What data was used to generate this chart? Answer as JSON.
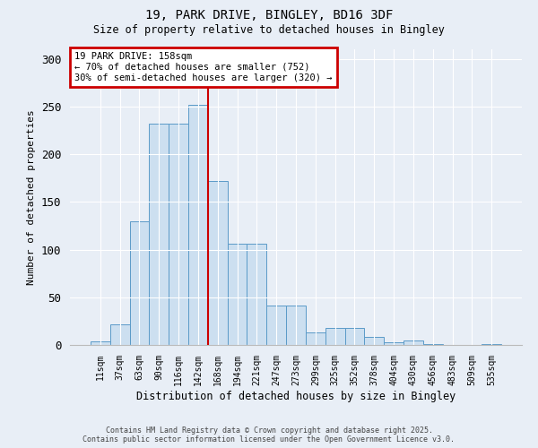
{
  "title_line1": "19, PARK DRIVE, BINGLEY, BD16 3DF",
  "title_line2": "Size of property relative to detached houses in Bingley",
  "xlabel": "Distribution of detached houses by size in Bingley",
  "ylabel": "Number of detached properties",
  "annotation_line1": "19 PARK DRIVE: 158sqm",
  "annotation_line2": "← 70% of detached houses are smaller (752)",
  "annotation_line3": "30% of semi-detached houses are larger (320) →",
  "bar_labels": [
    "11sqm",
    "37sqm",
    "63sqm",
    "90sqm",
    "116sqm",
    "142sqm",
    "168sqm",
    "194sqm",
    "221sqm",
    "247sqm",
    "273sqm",
    "299sqm",
    "325sqm",
    "352sqm",
    "378sqm",
    "404sqm",
    "430sqm",
    "456sqm",
    "483sqm",
    "509sqm",
    "535sqm"
  ],
  "bar_values": [
    4,
    22,
    130,
    232,
    232,
    252,
    172,
    106,
    106,
    41,
    41,
    13,
    18,
    18,
    8,
    3,
    5,
    1,
    0,
    0,
    1
  ],
  "bar_color": "#ccdff0",
  "bar_edge_color": "#5b9ac8",
  "vline_color": "#cc0000",
  "annotation_box_color": "#cc0000",
  "annotation_fill": "white",
  "background_color": "#e8eef6",
  "plot_bg_color": "#e8eef6",
  "ylim": [
    0,
    310
  ],
  "yticks": [
    0,
    50,
    100,
    150,
    200,
    250,
    300
  ],
  "footer_line1": "Contains HM Land Registry data © Crown copyright and database right 2025.",
  "footer_line2": "Contains public sector information licensed under the Open Government Licence v3.0."
}
